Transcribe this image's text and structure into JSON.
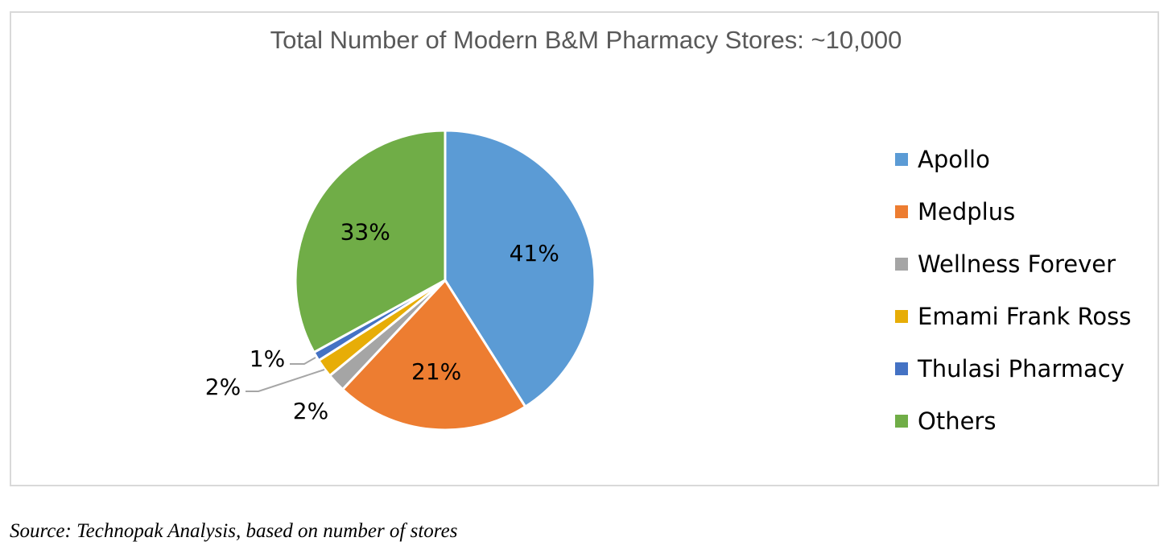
{
  "chart_data": {
    "type": "pie",
    "title": "Total Number of Modern B&M Pharmacy Stores: ~10,000",
    "slices": [
      {
        "name": "Apollo",
        "value": 41,
        "label": "41%",
        "color": "#5B9BD5"
      },
      {
        "name": "Medplus",
        "value": 21,
        "label": "21%",
        "color": "#ED7D31"
      },
      {
        "name": "Wellness Forever",
        "value": 2,
        "label": "2%",
        "color": "#A5A5A5"
      },
      {
        "name": "Emami Frank Ross",
        "value": 2,
        "label": "2%",
        "color": "#E7AD07"
      },
      {
        "name": "Thulasi Pharmacy",
        "value": 1,
        "label": "1%",
        "color": "#4472C4"
      },
      {
        "name": "Others",
        "value": 33,
        "label": "33%",
        "color": "#70AD47"
      }
    ],
    "legend_position": "right"
  },
  "source": "Source: Technopak Analysis, based on number of stores"
}
